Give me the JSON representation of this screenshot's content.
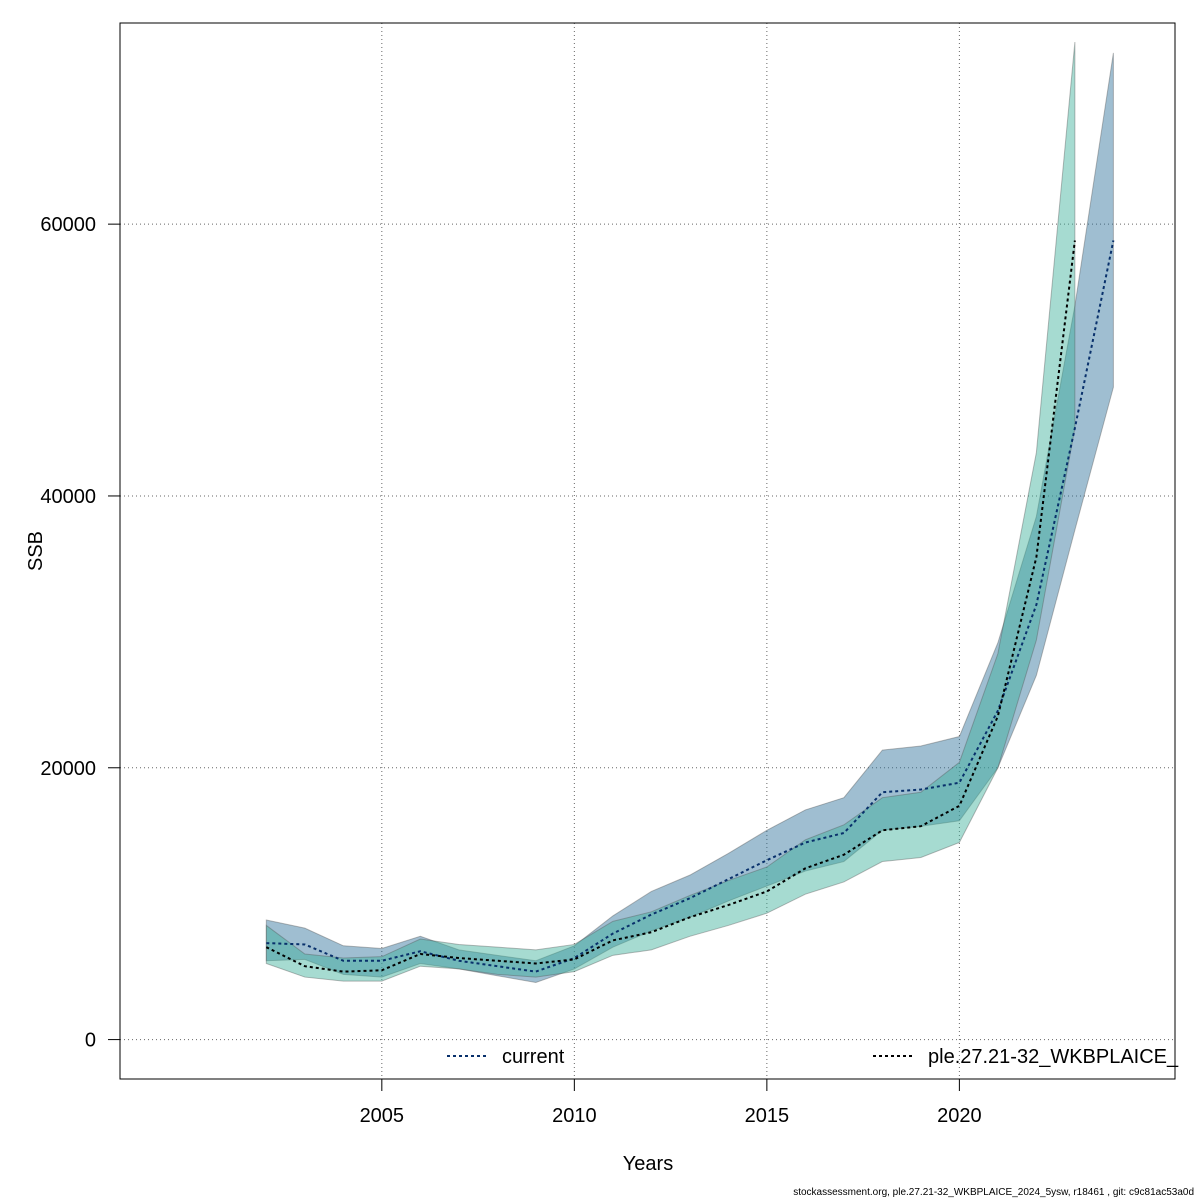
{
  "chart_data": {
    "type": "area",
    "xlabel": "Years",
    "ylabel": "SSB",
    "xlim": [
      1998.2,
      2025.6
    ],
    "ylim": [
      -2900,
      74800
    ],
    "xticks": [
      2005,
      2010,
      2015,
      2020
    ],
    "yticks": [
      0,
      20000,
      40000,
      60000
    ],
    "grid": true,
    "legend_placement": "bottom",
    "series": [
      {
        "name": "current",
        "color": "#2b6f99",
        "line_color": "#08306b",
        "x": [
          2002,
          2003,
          2004,
          2005,
          2006,
          2007,
          2008,
          2009,
          2010,
          2011,
          2012,
          2013,
          2014,
          2015,
          2016,
          2017,
          2018,
          2019,
          2020,
          2021,
          2022,
          2023,
          2024
        ],
        "y": [
          7100,
          7000,
          5800,
          5800,
          6500,
          5800,
          5400,
          5000,
          6000,
          7800,
          9200,
          10400,
          11800,
          13200,
          14500,
          15200,
          18200,
          18400,
          18900,
          24200,
          32000,
          45000,
          58800
        ],
        "lower": [
          5800,
          5900,
          4800,
          4600,
          5600,
          5200,
          4700,
          4200,
          5200,
          6800,
          8000,
          9000,
          10200,
          11300,
          12400,
          13100,
          15400,
          15700,
          16100,
          20000,
          26800,
          37500,
          48000
        ],
        "upper": [
          8800,
          8200,
          6900,
          6700,
          7600,
          6600,
          6200,
          5800,
          6900,
          9100,
          10900,
          12100,
          13700,
          15400,
          16900,
          17800,
          21300,
          21600,
          22300,
          29200,
          38500,
          54000,
          72600
        ]
      },
      {
        "name": "ple.27.21-32_WKBPLAICE_",
        "color": "#3aaf98",
        "line_color": "#000000",
        "x": [
          2002,
          2003,
          2004,
          2005,
          2006,
          2007,
          2008,
          2009,
          2010,
          2011,
          2012,
          2013,
          2014,
          2015,
          2016,
          2017,
          2018,
          2019,
          2020,
          2021,
          2022,
          2023
        ],
        "y": [
          6800,
          5400,
          5000,
          5100,
          6300,
          6000,
          5800,
          5600,
          5900,
          7300,
          7900,
          9000,
          9900,
          10900,
          12600,
          13600,
          15400,
          15700,
          17200,
          23800,
          35500,
          58800
        ],
        "lower": [
          5600,
          4600,
          4300,
          4300,
          5400,
          5200,
          4800,
          4600,
          5000,
          6200,
          6600,
          7600,
          8400,
          9300,
          10700,
          11600,
          13100,
          13400,
          14500,
          20000,
          29400,
          45000
        ],
        "upper": [
          8400,
          6300,
          6000,
          6100,
          7400,
          7000,
          6800,
          6600,
          7000,
          8700,
          9400,
          10600,
          11700,
          12700,
          14700,
          15800,
          17800,
          18200,
          20400,
          28400,
          43200,
          73400
        ]
      }
    ]
  },
  "footer": "stockassessment.org, ple.27.21-32_WKBPLAICE_2024_5ysw, r18461 , git: c9c81ac53a0d"
}
